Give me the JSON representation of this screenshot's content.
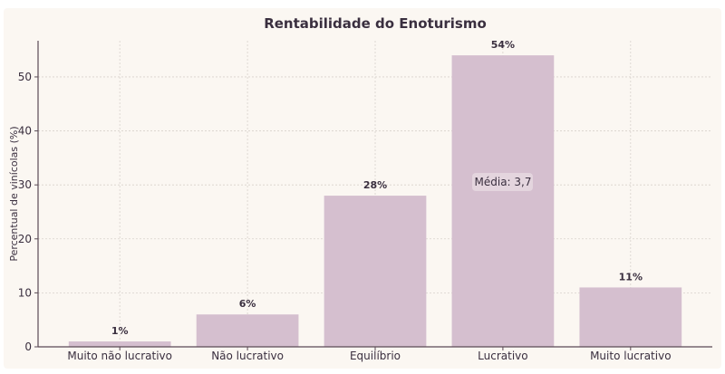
{
  "chart_data": {
    "type": "bar",
    "title": "Rentabilidade do Enoturismo",
    "xlabel": "",
    "ylabel": "Percentual de vinícolas (%)",
    "categories": [
      "Muito não lucrativo",
      "Não lucrativo",
      "Equilíbrio",
      "Lucrativo",
      "Muito lucrativo"
    ],
    "values": [
      1,
      6,
      28,
      54,
      11
    ],
    "data_labels": [
      "1%",
      "6%",
      "28%",
      "54%",
      "11%"
    ],
    "ylim": [
      0,
      56.7
    ],
    "yticks": [
      0,
      10,
      20,
      30,
      40,
      50
    ],
    "grid": true,
    "annotation": "Média: 3,7",
    "colors": {
      "bar": "#d5bfcf",
      "text": "#3a2f3f",
      "background": "#fbf7f2",
      "axis": "#5a4a55",
      "grid": "#d8d2cc"
    }
  }
}
